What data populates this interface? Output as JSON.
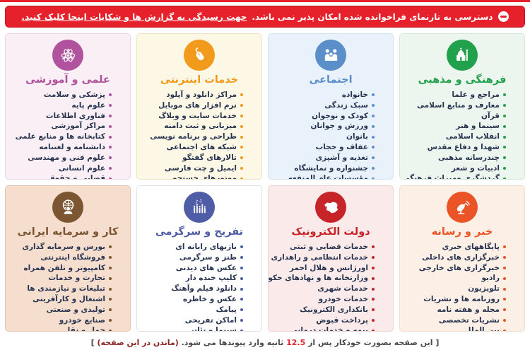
{
  "banner": {
    "message": "دسترسی به تارنمای فراخوانده شده امکان پذیر نمی باشد. ",
    "link_text": "جهت رسیدگی به گزارش ها و شکایات اینجا کلیک کنید.",
    "bg_color": "#e7212b"
  },
  "categories": [
    {
      "title": "فرهنگی و مذهبی",
      "icon": "mosque-icon",
      "accent": "#21a14b",
      "bg": "#edf6ee",
      "border": "#d6e8d8",
      "items": [
        "مراجع و علما",
        "معارف و منابع اسلامی",
        "قرآن",
        "سینما و هنر",
        "انقلاب اسلامی",
        "شهدا و دفاع مقدس",
        "چندرسانه مذهبی",
        "ادبیات و شعر",
        "گردشگری ومیراث فرهنگی"
      ]
    },
    {
      "title": "اجتماعی",
      "icon": "family-icon",
      "accent": "#5b8fc9",
      "bg": "#e9f2fa",
      "border": "#d2e3f1",
      "items": [
        "خانواده",
        "سبک زندگی",
        "کودک و نوجوان",
        "ورزش و جوانان",
        "بانوان",
        "عفاف و حجاب",
        "تغذیه و آشپزی",
        "جشنواره و نمایشگاه",
        "مؤسسات عام المنفعه"
      ]
    },
    {
      "title": "خدمات اینترنتی",
      "icon": "mouse-icon",
      "accent": "#f29a1c",
      "bg": "#fdf8e6",
      "border": "#eee4c4",
      "items": [
        "مراکز دانلود و آپلود",
        "نرم افزار های موبایل",
        "خدمات سایت و وبلاگ",
        "میزبانی و ثبت دامنه",
        "طراحی و برنامه نویسی",
        "شبکه های اجتماعی",
        "تالارهای گفتگو",
        "ایمیل و چت فارسی",
        "موتورهای جستجو"
      ]
    },
    {
      "title": "علمی و آموزشی",
      "icon": "atom-icon",
      "accent": "#b0529e",
      "bg": "#f9eff5",
      "border": "#e9d5e4",
      "items": [
        "پزشکی و سلامت",
        "علوم پایه",
        "فناوری اطلاعات",
        "مراکز آموزشی",
        "کتابخانه ها و منابع علمی",
        "دانشنامه و لغتنامه",
        "علوم فنی و مهندسی",
        "علوم انسانی",
        "قضایی و حقوق"
      ]
    },
    {
      "title": "خبر و رسانه",
      "icon": "satellite-icon",
      "accent": "#ea5426",
      "bg": "#fcefe6",
      "border": "#f2dccb",
      "items": [
        "پایگاههای خبری",
        "خبرگزاری های داخلی",
        "خبرگزاری های خارجی",
        "رادیو",
        "تلویزیون",
        "روزنامه ها و نشریات",
        "مجله و هفته نامه",
        "نشریات تخصصی",
        "بین الملل"
      ]
    },
    {
      "title": "دولت الکترونیک",
      "icon": "iran-egov-icon",
      "accent": "#c62428",
      "bg": "#fbeaea",
      "border": "#efd2d3",
      "items": [
        "خدمات قضایی و ثبتی",
        "خدمات انتظامی و راهداری",
        "اورژانس و هلال احمر",
        "وزارتخانه ها و نهادهای حکومتی",
        "خدمات شهری",
        "خدمات خودرو",
        "بانکداری الکترونیک",
        "پرداخت قبوض",
        "بیمه و خدمات درمانی"
      ]
    },
    {
      "title": "تفریح و سرگرمی",
      "icon": "party-icon",
      "accent": "#4f5ca6",
      "bg": "#ffffff",
      "border": "#e2e2e6",
      "items": [
        "بازیهای رایانه ای",
        "طنز و سرگرمی",
        "عکس های دیدنی",
        "کلیپ خنده دار",
        "دانلود فیلم وآهنگ",
        "عکس و خاطره",
        "پیامک",
        "اماکن تفریحی",
        "سینما و تئاتر"
      ]
    },
    {
      "title": "کار و سرمایه ایرانی",
      "icon": "worker-globe-icon",
      "accent": "#7c5632",
      "bg": "#f6decf",
      "border": "#e6c6b1",
      "items": [
        "بورس و سرمایه گذاری",
        "فروشگاه اینترنتی",
        "کامپیوتر و تلفن همراه",
        "تجارت و خدمات",
        "تبلیغات و نیازمندی ها",
        "اشتغال و کارآفرینی",
        "تولیدی و صنعتی",
        "صنایع خودرو",
        "حمل و نقل"
      ]
    }
  ],
  "footer": {
    "prefix": "[ این صفحه بصورت خودکار پس از ",
    "seconds": "12.5",
    "middle": " ثانیه وارد پیوندها می شود. ",
    "link": "(ماندن در این صفحه)",
    "suffix": " ]"
  }
}
